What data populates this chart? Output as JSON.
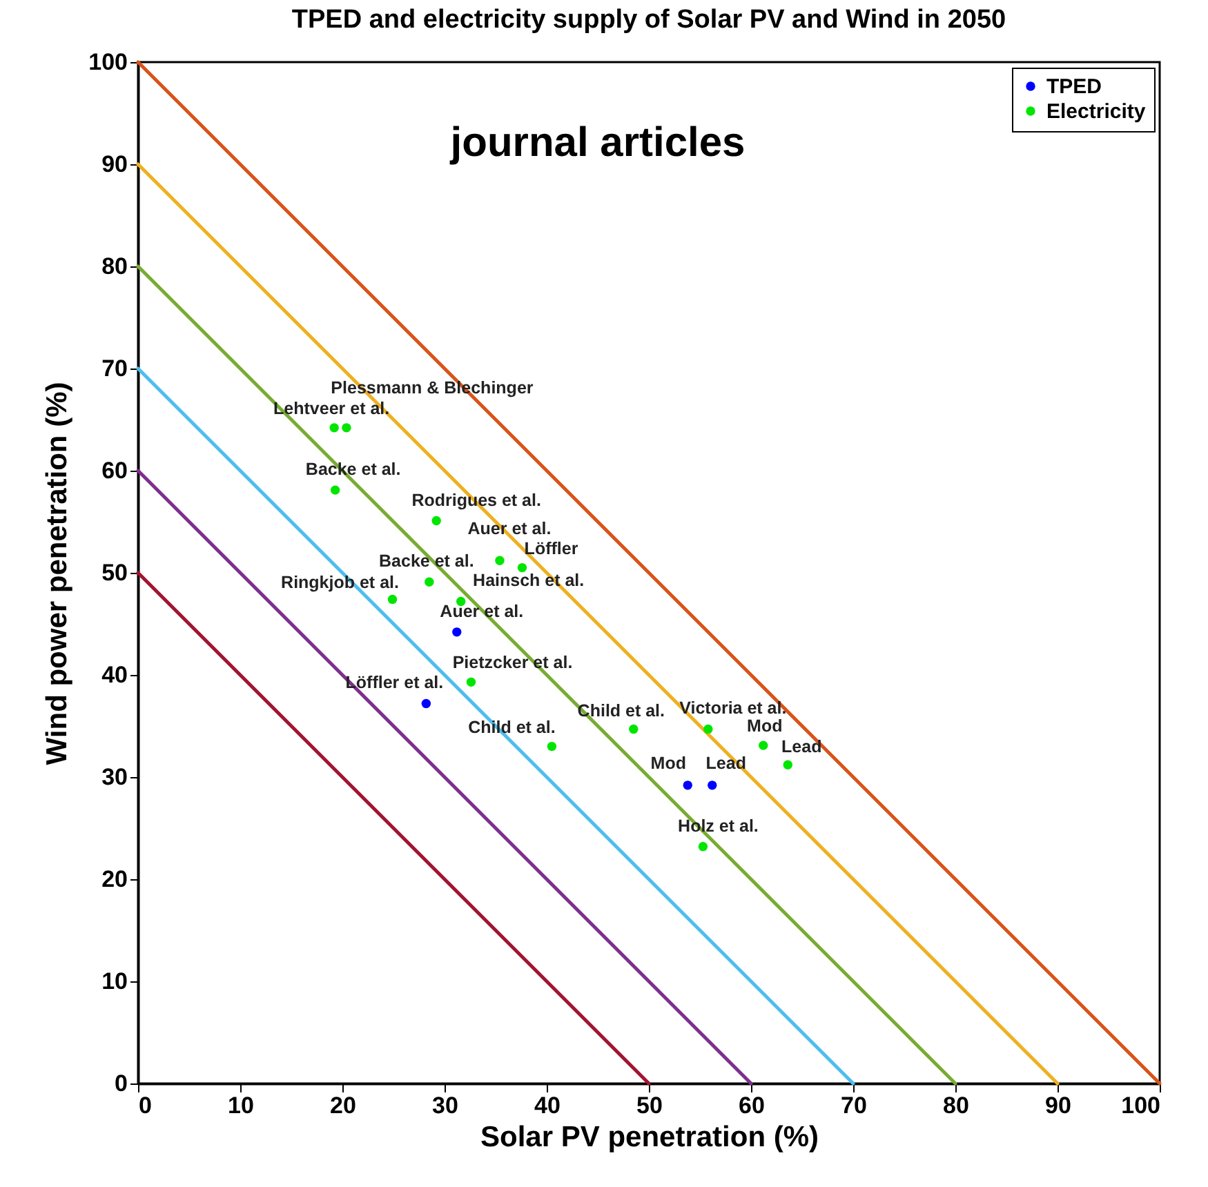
{
  "chart_data": {
    "type": "scatter",
    "title": "TPED and electricity supply of Solar PV and Wind in 2050",
    "xlabel": "Solar PV penetration (%)",
    "ylabel": "Wind power penetration (%)",
    "xlim": [
      0,
      100
    ],
    "ylim": [
      0,
      100
    ],
    "xticks": [
      0,
      10,
      20,
      30,
      40,
      50,
      60,
      70,
      80,
      90,
      100
    ],
    "yticks": [
      0,
      10,
      20,
      30,
      40,
      50,
      60,
      70,
      80,
      90,
      100
    ],
    "grid": false,
    "legend": "top right",
    "series": [
      {
        "type": "line",
        "color": "#a2142f",
        "x": [
          0,
          50
        ],
        "values": [
          50,
          0
        ]
      },
      {
        "type": "line",
        "color": "#7e2f8e",
        "x": [
          0,
          60
        ],
        "values": [
          60,
          0
        ]
      },
      {
        "type": "line",
        "color": "#4dbeee",
        "x": [
          0,
          70
        ],
        "values": [
          70,
          0
        ]
      },
      {
        "type": "line",
        "color": "#77ac30",
        "x": [
          0,
          80
        ],
        "values": [
          80,
          0
        ]
      },
      {
        "type": "line",
        "color": "#edb120",
        "x": [
          0,
          90
        ],
        "values": [
          90,
          0
        ]
      },
      {
        "type": "line",
        "color": "#d95319",
        "x": [
          0,
          100
        ],
        "values": [
          100,
          0
        ]
      },
      {
        "name": "TPED",
        "color": "#0000ff",
        "marker": "circle",
        "x": [
          31.2,
          28.2,
          53.8,
          56.2
        ],
        "values": [
          44.2,
          37.2,
          29.2,
          29.2
        ]
      },
      {
        "name": "Electricity",
        "color": "#00e600",
        "marker": "circle",
        "x": [
          20.4,
          19.2,
          19.3,
          29.2,
          35.4,
          37.6,
          28.5,
          24.9,
          31.6,
          32.6,
          40.5,
          48.5,
          55.8,
          61.2,
          63.6,
          55.3
        ],
        "values": [
          64.2,
          64.2,
          58.1,
          55.1,
          51.2,
          50.5,
          49.1,
          47.4,
          47.2,
          39.3,
          33.0,
          34.7,
          34.7,
          33.1,
          31.2,
          23.2
        ]
      }
    ],
    "annotations": [
      "journal articles",
      {
        "text": "Plessmann & Blechinger",
        "x": 20.4,
        "y": 64.2
      },
      {
        "text": "Lehtveer et al.",
        "x": 19.2,
        "y": 64.2
      },
      {
        "text": "Backe et al.",
        "x": 19.3,
        "y": 58.1
      },
      {
        "text": "Rodrigues et al.",
        "x": 29.2,
        "y": 55.1
      },
      {
        "text": "Auer et al.",
        "x": 35.4,
        "y": 51.2
      },
      {
        "text": "Löffler",
        "x": 37.6,
        "y": 50.5
      },
      {
        "text": "Backe et al.",
        "x": 28.5,
        "y": 49.1
      },
      {
        "text": "Ringkjob et al.",
        "x": 24.9,
        "y": 47.4
      },
      {
        "text": "Hainsch et al.",
        "x": 31.6,
        "y": 47.2
      },
      {
        "text": "Auer et al.",
        "x": 31.2,
        "y": 44.2
      },
      {
        "text": "Pietzcker et al.",
        "x": 32.6,
        "y": 39.3
      },
      {
        "text": "Löffler et al.",
        "x": 28.2,
        "y": 37.2
      },
      {
        "text": "Child et al.",
        "x": 40.5,
        "y": 33.0
      },
      {
        "text": "Child et al.",
        "x": 48.5,
        "y": 34.7
      },
      {
        "text": "Victoria et al.",
        "x": 55.8,
        "y": 34.7
      },
      {
        "text": "Mod",
        "x": 61.2,
        "y": 33.1
      },
      {
        "text": "Lead",
        "x": 63.6,
        "y": 31.2
      },
      {
        "text": "Mod",
        "x": 53.8,
        "y": 29.2
      },
      {
        "text": "Lead",
        "x": 56.2,
        "y": 29.2
      },
      {
        "text": "Holz et al.",
        "x": 55.3,
        "y": 23.2
      }
    ]
  }
}
